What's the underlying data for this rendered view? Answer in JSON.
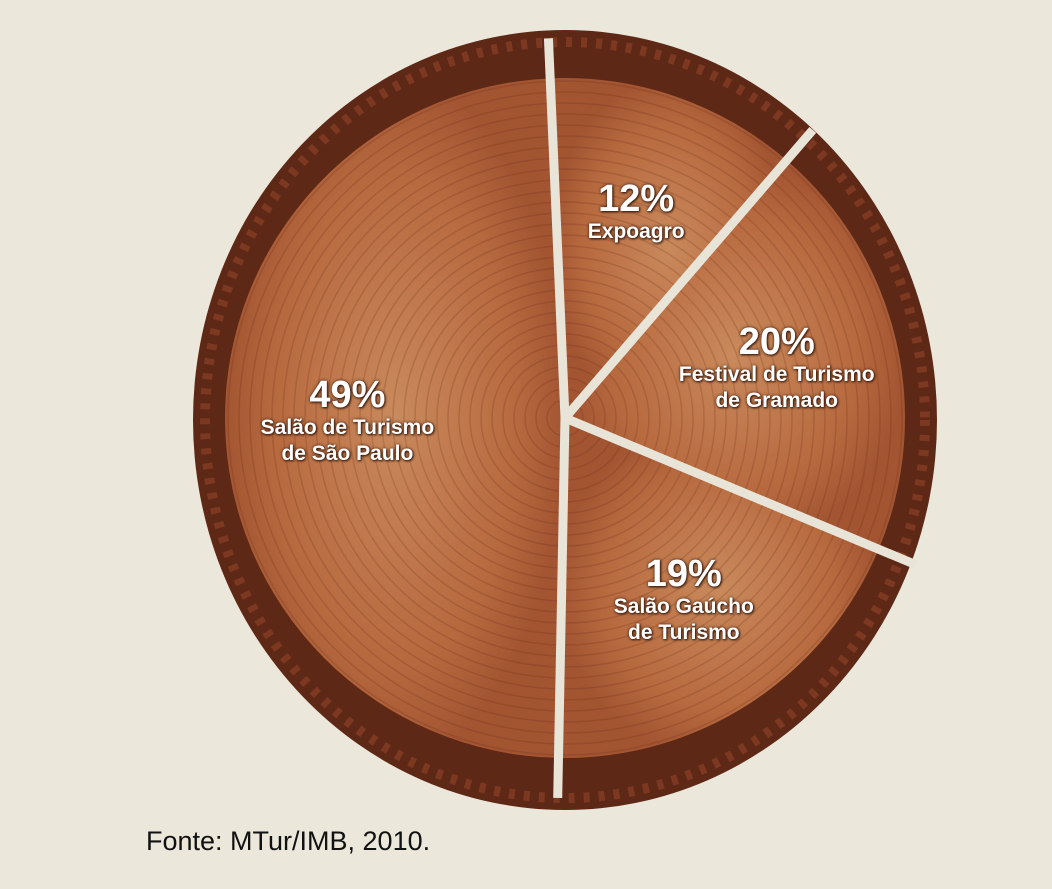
{
  "chart_data": {
    "type": "pie",
    "categories": [
      "Expoagro",
      "Festival de Turismo\nde Gramado",
      "Salão Gaúcho\nde Turismo",
      "Salão de Turismo\nde São Paulo"
    ],
    "values": [
      12,
      20,
      19,
      49
    ],
    "value_labels": [
      "12%",
      "20%",
      "19%",
      "49%"
    ],
    "color": "#b66b40",
    "source": "Fonte: MTur/IMB, 2010."
  }
}
